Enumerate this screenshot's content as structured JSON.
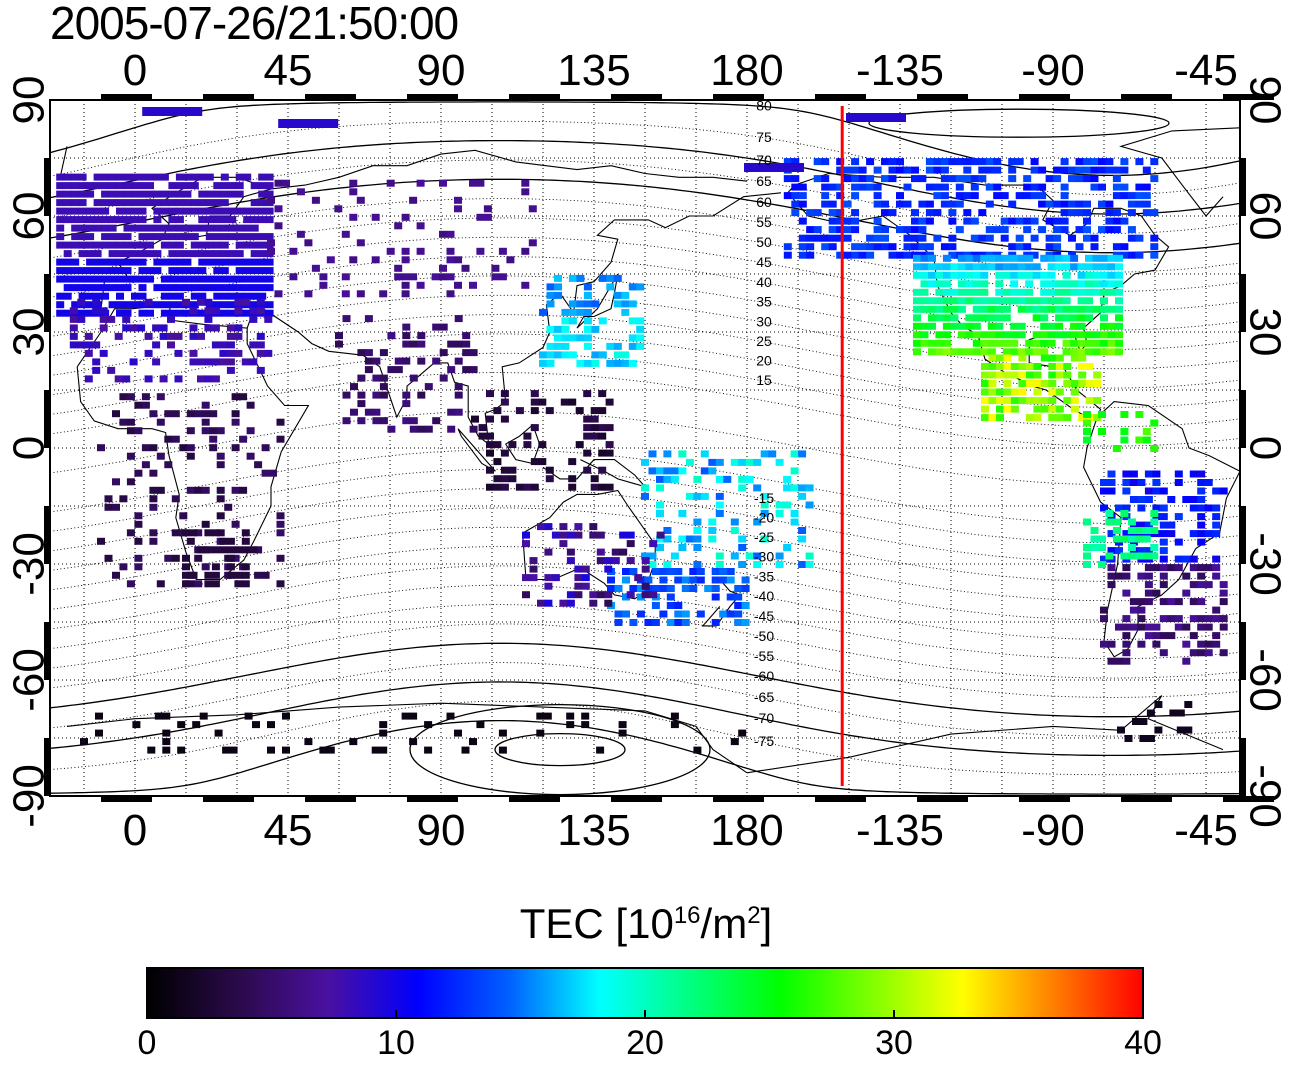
{
  "title": "2005-07-26/21:50:00",
  "map": {
    "top_lon_ticks": [
      "0",
      "45",
      "90",
      "135",
      "180",
      "-135",
      "-90",
      "-45"
    ],
    "bottom_lon_ticks": [
      "0",
      "45",
      "90",
      "135",
      "180",
      "-135",
      "-90",
      "-45"
    ],
    "left_lat_ticks": [
      "90",
      "60",
      "30",
      "0",
      "-30",
      "-60",
      "-90"
    ],
    "right_lat_ticks": [
      "90",
      "60",
      "30",
      "0",
      "-30",
      "-60",
      "-90"
    ],
    "terminator_lon": -152,
    "contour_labels_north": [
      "80",
      "75",
      "70",
      "65",
      "60",
      "55",
      "50",
      "45",
      "40",
      "35",
      "30",
      "25",
      "20",
      "15"
    ],
    "contour_labels_south": [
      "-15",
      "-20",
      "-25",
      "-30",
      "-35",
      "-40",
      "-45",
      "-50",
      "-55",
      "-60",
      "-65",
      "-70",
      "-75"
    ],
    "colors": {
      "terminator": "#ff0000",
      "grid": "#000000"
    }
  },
  "colorbar": {
    "title_prefix": "TEC  [10",
    "title_exp": "16",
    "title_mid": "/m",
    "title_exp2": "2",
    "title_suffix": "]",
    "ticks": [
      "0",
      "10",
      "20",
      "30",
      "40"
    ],
    "min": 0,
    "max": 40,
    "stops": [
      "#000000",
      "#2a0a4a",
      "#4a10a0",
      "#0000ff",
      "#0060ff",
      "#00ffff",
      "#00ff80",
      "#00ff00",
      "#80ff00",
      "#ffff00",
      "#ff8000",
      "#ff0000"
    ]
  }
}
